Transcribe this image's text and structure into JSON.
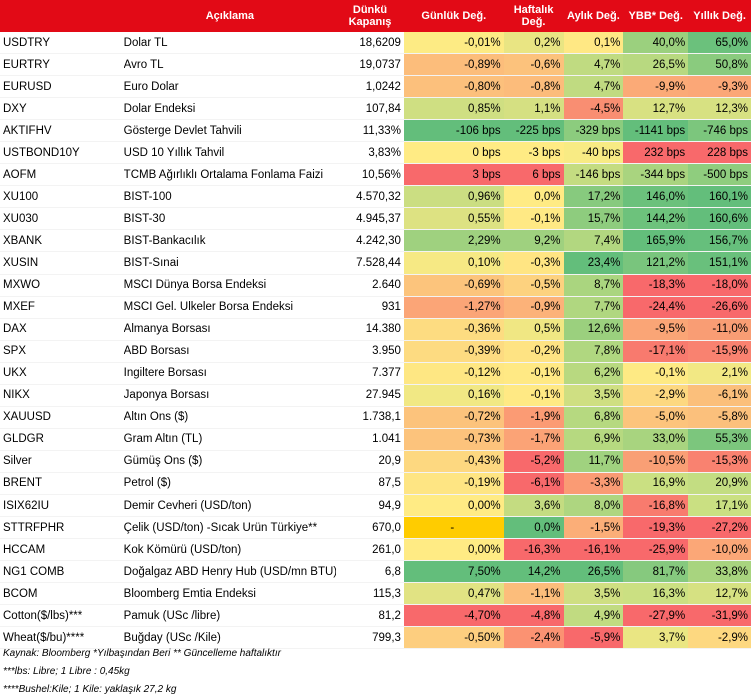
{
  "header": {
    "desc": "Açıklama",
    "close": "Dünkü Kapanış",
    "daily": "Günlük Değ.",
    "weekly": "Haftalık Değ.",
    "monthly": "Aylık Değ.",
    "ytd": "YBB* Değ.",
    "yearly": "Yıllık Değ."
  },
  "rows": [
    {
      "code": "USDTRY",
      "desc": "Dolar TL",
      "close": "18,6209",
      "v": [
        "-0,01%",
        "0,2%",
        "0,1%",
        "40,0%",
        "65,0%"
      ],
      "bg": [
        "#fdeb84",
        "#e9e583",
        "#ffe884",
        "#9bd07e",
        "#6bc17c"
      ]
    },
    {
      "code": "EURTRY",
      "desc": "Avro TL",
      "close": "19,0737",
      "v": [
        "-0,89%",
        "-0,6%",
        "4,7%",
        "26,5%",
        "50,8%"
      ],
      "bg": [
        "#fcbd7b",
        "#fcc27c",
        "#c0db81",
        "#b8d980",
        "#8acb7e"
      ]
    },
    {
      "code": "EURUSD",
      "desc": "Euro Dolar",
      "close": "1,0242",
      "v": [
        "-0,80%",
        "-0,8%",
        "4,7%",
        "-9,9%",
        "-9,3%"
      ],
      "bg": [
        "#fcc07c",
        "#fcbc7b",
        "#c0db81",
        "#fbaa77",
        "#fba777"
      ]
    },
    {
      "code": "DXY",
      "desc": "Dolar Endeksi",
      "close": "107,84",
      "v": [
        "0,85%",
        "1,1%",
        "-4,5%",
        "12,7%",
        "12,3%"
      ],
      "bg": [
        "#cfdf82",
        "#d5e082",
        "#f98e72",
        "#d8e182",
        "#d7e182"
      ]
    },
    {
      "code": "AKTIFHV",
      "desc": "Gösterge Devlet Tahvili",
      "close": "11,33%",
      "v": [
        "-106 bps",
        "-225 bps",
        "-329 bps",
        "-1141 bps",
        "-746 bps"
      ],
      "bg": [
        "#63be7b",
        "#63be7b",
        "#8ccc7e",
        "#63be7b",
        "#7cc67d"
      ]
    },
    {
      "code": "USTBOND10Y",
      "desc": "USD 10 Yıllık Tahvil",
      "close": "3,83%",
      "v": [
        "0 bps",
        "-3 bps",
        "-40 bps",
        "232 bps",
        "228 bps"
      ],
      "bg": [
        "#ffeb84",
        "#ffeb84",
        "#f8eb84",
        "#f8696b",
        "#f8696b"
      ]
    },
    {
      "code": "AOFM",
      "desc": "TCMB Ağırlıklı Ortalama Fonlama Faizi",
      "close": "10,56%",
      "v": [
        "3 bps",
        "6 bps",
        "-146 bps",
        "-344 bps",
        "-500 bps"
      ],
      "bg": [
        "#f8696b",
        "#f8696b",
        "#c4dc81",
        "#a9d47f",
        "#8fcd7e"
      ]
    },
    {
      "code": "XU100",
      "desc": "BIST-100",
      "close": "4.570,32",
      "v": [
        "0,96%",
        "0,0%",
        "17,2%",
        "146,0%",
        "160,1%"
      ],
      "bg": [
        "#cbde82",
        "#ffeb84",
        "#87ca7e",
        "#6bc17c",
        "#63be7b"
      ]
    },
    {
      "code": "XU030",
      "desc": "BIST-30",
      "close": "4.945,37",
      "v": [
        "0,55%",
        "-0,1%",
        "15,7%",
        "144,2%",
        "160,6%"
      ],
      "bg": [
        "#dde282",
        "#ffe984",
        "#8ecc7e",
        "#6dc27c",
        "#63be7b"
      ]
    },
    {
      "code": "XBANK",
      "desc": "BIST-Bankacılık",
      "close": "4.242,30",
      "v": [
        "2,29%",
        "9,2%",
        "7,4%",
        "165,9%",
        "156,7%"
      ],
      "bg": [
        "#9fd17f",
        "#9fd17f",
        "#b2d780",
        "#63be7b",
        "#66bf7c"
      ]
    },
    {
      "code": "XUSIN",
      "desc": "BIST-Sınai",
      "close": "7.528,44",
      "v": [
        "0,10%",
        "-0,3%",
        "23,4%",
        "121,2%",
        "151,1%"
      ],
      "bg": [
        "#f6e984",
        "#ffe583",
        "#63be7b",
        "#79c57d",
        "#69c07c"
      ]
    },
    {
      "code": "MXWO",
      "desc": "MSCI Dünya Borsa Endeksi",
      "close": "2.640",
      "v": [
        "-0,69%",
        "-0,5%",
        "8,7%",
        "-18,3%",
        "-18,0%"
      ],
      "bg": [
        "#fcc47c",
        "#fdd27f",
        "#aad57f",
        "#f8696b",
        "#f8696b"
      ]
    },
    {
      "code": "MXEF",
      "desc": "MSCI Gel. Ülkeler Borsa Endeksi",
      "close": "931",
      "v": [
        "-1,27%",
        "-0,9%",
        "7,7%",
        "-24,4%",
        "-26,6%"
      ],
      "bg": [
        "#fba577",
        "#fcb279",
        "#b0d780",
        "#f8696b",
        "#f8696b"
      ]
    },
    {
      "code": "DAX",
      "desc": "Almanya Borsası",
      "close": "14.380",
      "v": [
        "-0,36%",
        "0,5%",
        "12,6%",
        "-9,5%",
        "-11,0%"
      ],
      "bg": [
        "#fddc81",
        "#f0e783",
        "#9bd07e",
        "#faa576",
        "#f99d74"
      ]
    },
    {
      "code": "SPX",
      "desc": "ABD Borsası",
      "close": "3.950",
      "v": [
        "-0,39%",
        "-0,2%",
        "7,8%",
        "-17,1%",
        "-15,9%"
      ],
      "bg": [
        "#fddb81",
        "#fee383",
        "#b0d780",
        "#f87a6e",
        "#f98270"
      ]
    },
    {
      "code": "UKX",
      "desc": "İngiltere Borsası",
      "close": "7.377",
      "v": [
        "-0,12%",
        "-0,1%",
        "6,2%",
        "-0,1%",
        "2,1%"
      ],
      "bg": [
        "#fee783",
        "#ffe984",
        "#b8d980",
        "#feea84",
        "#f2e884"
      ]
    },
    {
      "code": "NIKX",
      "desc": "Japonya Borsası",
      "close": "27.945",
      "v": [
        "0,16%",
        "-0,1%",
        "3,5%",
        "-2,9%",
        "-6,1%"
      ],
      "bg": [
        "#f1e884",
        "#ffe984",
        "#cfdf82",
        "#fdd880",
        "#fbbf7b"
      ]
    },
    {
      "code": "XAUUSD",
      "desc": "Altın Ons ($)",
      "close": "1.738,1",
      "v": [
        "-0,72%",
        "-1,9%",
        "6,8%",
        "-5,0%",
        "-5,8%"
      ],
      "bg": [
        "#fcc37c",
        "#fb9b74",
        "#b6d980",
        "#fcc47c",
        "#fbc07c"
      ]
    },
    {
      "code": "GLDGR",
      "desc": "Gram Altın (TL)",
      "close": "1.041",
      "v": [
        "-0,73%",
        "-1,7%",
        "6,9%",
        "33,0%",
        "55,3%"
      ],
      "bg": [
        "#fcc37c",
        "#fba376",
        "#b6d980",
        "#a8d47f",
        "#7cc67d"
      ]
    },
    {
      "code": "Silver",
      "desc": "Gümüş Ons ($)",
      "close": "20,9",
      "v": [
        "-0,43%",
        "-5,2%",
        "11,7%",
        "-10,5%",
        "-15,3%"
      ],
      "bg": [
        "#fdd880",
        "#f8696b",
        "#a0d27f",
        "#f99f75",
        "#f98270"
      ]
    },
    {
      "code": "BRENT",
      "desc": "Petrol ($)",
      "close": "87,5",
      "v": [
        "-0,19%",
        "-6,1%",
        "-3,3%",
        "16,9%",
        "20,9%"
      ],
      "bg": [
        "#fee583",
        "#f8696b",
        "#fa9b74",
        "#cae082",
        "#c3dd82"
      ]
    },
    {
      "code": "ISIX62IU",
      "desc": "Demir Cevheri (USD/ton)",
      "close": "94,9",
      "v": [
        "0,00%",
        "3,6%",
        "8,0%",
        "-16,8%",
        "17,1%"
      ],
      "bg": [
        "#ffeb84",
        "#c4dc81",
        "#aed680",
        "#f87b6e",
        "#cae082"
      ]
    },
    {
      "code": "STTRFPHR",
      "desc": "Çelik (USD/ton) -Sıcak Ürün Türkiye**",
      "close": "670,0",
      "v": [
        "-",
        "0,0%",
        "-1,5%",
        "-19,3%",
        "-27,2%"
      ],
      "bg": [
        "#ffcc00",
        "#63be7b",
        "#fbae78",
        "#f8696b",
        "#f8696b"
      ]
    },
    {
      "code": "HCCAM",
      "desc": "Kok Kömürü (USD/ton)",
      "close": "261,0",
      "v": [
        "0,00%",
        "-16,3%",
        "-16,1%",
        "-25,9%",
        "-10,0%"
      ],
      "bg": [
        "#ffeb84",
        "#f8696b",
        "#f8696b",
        "#f8696b",
        "#fba777"
      ]
    },
    {
      "code": "NG1 COMB",
      "desc": "Doğalgaz ABD Henry Hub (USD/mn BTU)",
      "close": "6,8",
      "v": [
        "7,50%",
        "14,2%",
        "26,5%",
        "81,7%",
        "33,8%"
      ],
      "bg": [
        "#63be7b",
        "#63be7b",
        "#63be7b",
        "#86c97e",
        "#a8d47f"
      ]
    },
    {
      "code": "BCOM",
      "desc": "Bloomberg Emtia Endeksi",
      "close": "115,3",
      "v": [
        "0,47%",
        "-1,1%",
        "3,5%",
        "16,3%",
        "12,7%"
      ],
      "bg": [
        "#e1e383",
        "#fcbd7b",
        "#cfdf82",
        "#cbe082",
        "#d6e182"
      ]
    },
    {
      "code": "Cotton($/lbs)***",
      "desc": "Pamuk (USc /libre)",
      "close": "81,2",
      "v": [
        "-4,70%",
        "-4,8%",
        "4,9%",
        "-27,9%",
        "-31,9%"
      ],
      "bg": [
        "#f8696b",
        "#f8696b",
        "#c1db81",
        "#f8696b",
        "#f8696b"
      ]
    },
    {
      "code": "Wheat($/bu)****",
      "desc": "Buğday (USc /Kile)",
      "close": "799,3",
      "v": [
        "-0,50%",
        "-2,4%",
        "-5,9%",
        "3,7%",
        "-2,9%"
      ],
      "bg": [
        "#fdce7f",
        "#fb9272",
        "#f8696b",
        "#eae683",
        "#fdd880"
      ]
    }
  ],
  "footnotes": [
    "Kaynak: Bloomberg *Yılbaşından Beri  ** Güncelleme haftalıktır",
    "***lbs: Libre; 1 Libre : 0,45kg",
    "****Bushel:Kile; 1 Kile: yaklaşık 27,2 kg"
  ]
}
